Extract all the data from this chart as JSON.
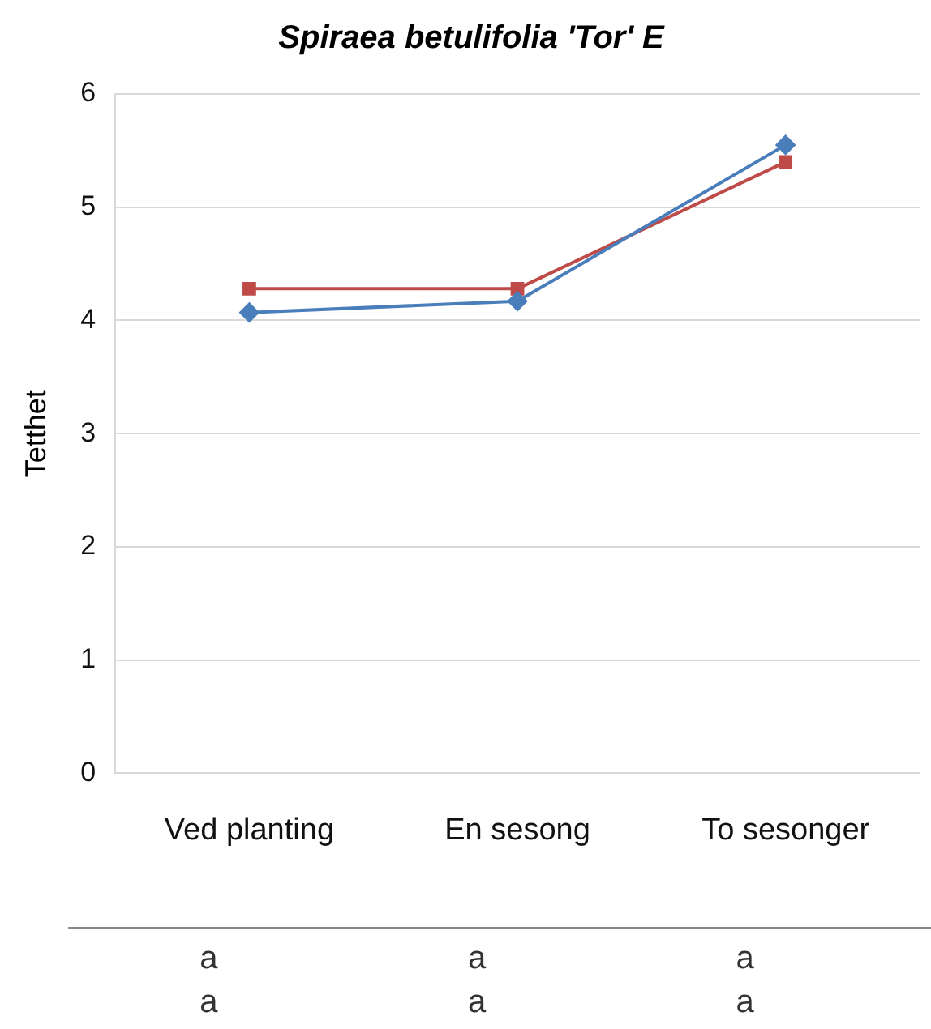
{
  "chart_data": {
    "type": "line",
    "title": "Spiraea betulifolia 'Tor' E",
    "ylabel": "Tetthet",
    "categories": [
      "Ved planting",
      "En sesong",
      "To sesonger"
    ],
    "series": [
      {
        "color": "#4a7ebb",
        "marker": "diamond",
        "values": [
          4.07,
          4.17,
          5.55
        ]
      },
      {
        "color": "#be4b48",
        "marker": "square",
        "values": [
          4.28,
          4.28,
          5.4
        ]
      }
    ],
    "ylim": [
      0,
      6
    ],
    "yticks": [
      0,
      1,
      2,
      3,
      4,
      5,
      6
    ],
    "grid": "y",
    "legend": false,
    "annotations": [
      "a",
      "a",
      "a",
      "a",
      "a",
      "a"
    ]
  }
}
